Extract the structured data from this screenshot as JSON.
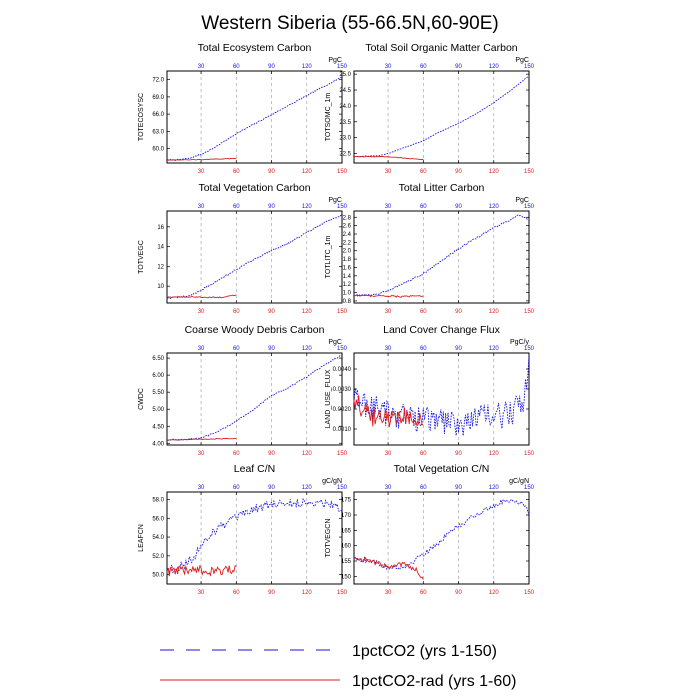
{
  "figure": {
    "title": "Western Siberia (55-66.5N,60-90E)",
    "colors": {
      "series_150": "#1515e0",
      "series_60": "#dc1c1c",
      "grid": "#9a9a9a",
      "axis": "#000000"
    },
    "legend": [
      {
        "label": "1pctCO2 (yrs 1-150)",
        "style": "dashed",
        "color": "#1515e0"
      },
      {
        "label": "1pctCO2-rad (yrs 1-60)",
        "style": "solid",
        "color": "#dc1c1c"
      }
    ]
  },
  "chart_data": [
    {
      "type": "line",
      "title": "Total Ecosystem Carbon",
      "ylabel": "TOTECOSYSC",
      "units": "PgC",
      "xlim": [
        1,
        150
      ],
      "ylim": [
        57.5,
        73.5
      ],
      "xticks": [
        30,
        60,
        90,
        120,
        150
      ],
      "yticks": [
        60.0,
        63.0,
        66.0,
        69.0,
        72.0
      ],
      "ytick_labels": [
        "60.0",
        "63.0",
        "66.0",
        "69.0",
        "72.0"
      ],
      "series": [
        {
          "name": "1pctCO2 (yrs 1-150)",
          "noise": 0.1,
          "points": [
            [
              1,
              58.0
            ],
            [
              10,
              58.05
            ],
            [
              20,
              58.3
            ],
            [
              30,
              59.0
            ],
            [
              40,
              60.0
            ],
            [
              50,
              61.3
            ],
            [
              60,
              62.6
            ],
            [
              70,
              63.7
            ],
            [
              80,
              64.8
            ],
            [
              90,
              65.9
            ],
            [
              100,
              67.0
            ],
            [
              110,
              68.1
            ],
            [
              120,
              69.2
            ],
            [
              130,
              70.3
            ],
            [
              140,
              71.4
            ],
            [
              150,
              72.5
            ]
          ]
        },
        {
          "name": "1pctCO2-rad (yrs 1-60)",
          "noise": 0.05,
          "points": [
            [
              1,
              58.0
            ],
            [
              20,
              58.05
            ],
            [
              40,
              58.15
            ],
            [
              60,
              58.3
            ]
          ]
        }
      ]
    },
    {
      "type": "line",
      "title": "Total Soil Organic Matter Carbon",
      "ylabel": "TOTSOMC_1m",
      "units": "PgC",
      "xlim": [
        1,
        150
      ],
      "ylim": [
        22.2,
        25.1
      ],
      "xticks": [
        30,
        60,
        90,
        120,
        150
      ],
      "yticks": [
        22.5,
        23.0,
        23.5,
        24.0,
        24.5,
        25.0
      ],
      "ytick_labels": [
        "22.5",
        "23.0",
        "23.5",
        "24.0",
        "24.5",
        "25.0"
      ],
      "series": [
        {
          "name": "1pctCO2 (yrs 1-150)",
          "noise": 0.01,
          "points": [
            [
              1,
              22.4
            ],
            [
              20,
              22.42
            ],
            [
              30,
              22.5
            ],
            [
              45,
              22.7
            ],
            [
              60,
              22.9
            ],
            [
              75,
              23.2
            ],
            [
              90,
              23.45
            ],
            [
              105,
              23.75
            ],
            [
              120,
              24.1
            ],
            [
              135,
              24.5
            ],
            [
              150,
              24.95
            ]
          ]
        },
        {
          "name": "1pctCO2-rad (yrs 1-60)",
          "noise": 0.01,
          "points": [
            [
              1,
              22.4
            ],
            [
              30,
              22.4
            ],
            [
              45,
              22.35
            ],
            [
              60,
              22.3
            ]
          ]
        }
      ]
    },
    {
      "type": "line",
      "title": "Total Vegetation Carbon",
      "ylabel": "TOTVEGC",
      "units": "PgC",
      "xlim": [
        1,
        150
      ],
      "ylim": [
        8.3,
        17.6
      ],
      "xticks": [
        30,
        60,
        90,
        120,
        150
      ],
      "yticks": [
        10,
        12,
        14,
        16
      ],
      "ytick_labels": [
        "10",
        "12",
        "14",
        "16"
      ],
      "series": [
        {
          "name": "1pctCO2 (yrs 1-150)",
          "noise": 0.08,
          "points": [
            [
              1,
              8.8
            ],
            [
              20,
              9.0
            ],
            [
              30,
              9.6
            ],
            [
              45,
              10.6
            ],
            [
              60,
              11.7
            ],
            [
              75,
              12.7
            ],
            [
              90,
              13.6
            ],
            [
              105,
              14.4
            ],
            [
              120,
              15.4
            ],
            [
              135,
              16.4
            ],
            [
              150,
              17.2
            ]
          ]
        },
        {
          "name": "1pctCO2-rad (yrs 1-60)",
          "noise": 0.05,
          "points": [
            [
              1,
              8.9
            ],
            [
              30,
              8.9
            ],
            [
              45,
              8.85
            ],
            [
              60,
              9.1
            ]
          ]
        }
      ]
    },
    {
      "type": "line",
      "title": "Total Litter Carbon",
      "ylabel": "TOTLITC_1m",
      "units": "PgC",
      "xlim": [
        1,
        150
      ],
      "ylim": [
        0.75,
        2.95
      ],
      "xticks": [
        30,
        60,
        90,
        120,
        150
      ],
      "yticks": [
        0.8,
        1.0,
        1.2,
        1.4,
        1.6,
        1.8,
        2.0,
        2.2,
        2.4,
        2.6,
        2.8
      ],
      "ytick_labels": [
        "0.8",
        "1.0",
        "1.2",
        "1.4",
        "1.6",
        "1.8",
        "2.0",
        "2.2",
        "2.4",
        "2.6",
        "2.8"
      ],
      "series": [
        {
          "name": "1pctCO2 (yrs 1-150)",
          "noise": 0.02,
          "points": [
            [
              1,
              0.93
            ],
            [
              20,
              0.95
            ],
            [
              30,
              1.05
            ],
            [
              45,
              1.25
            ],
            [
              60,
              1.45
            ],
            [
              75,
              1.75
            ],
            [
              90,
              2.05
            ],
            [
              105,
              2.3
            ],
            [
              120,
              2.55
            ],
            [
              135,
              2.75
            ],
            [
              140,
              2.85
            ],
            [
              150,
              2.75
            ]
          ]
        },
        {
          "name": "1pctCO2-rad (yrs 1-60)",
          "noise": 0.02,
          "points": [
            [
              1,
              0.93
            ],
            [
              30,
              0.92
            ],
            [
              45,
              0.9
            ],
            [
              60,
              0.93
            ]
          ]
        }
      ]
    },
    {
      "type": "line",
      "title": "Coarse Woody Debris Carbon",
      "ylabel": "CWDC",
      "units": "PgC",
      "xlim": [
        1,
        150
      ],
      "ylim": [
        3.95,
        6.65
      ],
      "xticks": [
        30,
        60,
        90,
        120,
        150
      ],
      "yticks": [
        4.0,
        4.5,
        5.0,
        5.5,
        6.0,
        6.5
      ],
      "ytick_labels": [
        "4.00",
        "4.50",
        "5.00",
        "5.50",
        "6.00",
        "6.50"
      ],
      "series": [
        {
          "name": "1pctCO2 (yrs 1-150)",
          "noise": 0.02,
          "points": [
            [
              1,
              4.1
            ],
            [
              20,
              4.12
            ],
            [
              30,
              4.15
            ],
            [
              45,
              4.35
            ],
            [
              60,
              4.65
            ],
            [
              75,
              5.0
            ],
            [
              90,
              5.4
            ],
            [
              100,
              5.55
            ],
            [
              110,
              5.75
            ],
            [
              120,
              5.95
            ],
            [
              135,
              6.3
            ],
            [
              150,
              6.6
            ]
          ]
        },
        {
          "name": "1pctCO2-rad (yrs 1-60)",
          "noise": 0.01,
          "points": [
            [
              1,
              4.1
            ],
            [
              30,
              4.12
            ],
            [
              60,
              4.14
            ]
          ]
        }
      ]
    },
    {
      "type": "line",
      "title": "Land Cover Change Flux",
      "ylabel": "LAND_USE_FLUX",
      "units": "PgC/y",
      "xlim": [
        1,
        150
      ],
      "ylim": [
        0.0002,
        0.0048
      ],
      "xticks": [
        30,
        60,
        90,
        120,
        150
      ],
      "yticks": [
        0.001,
        0.002,
        0.003,
        0.004
      ],
      "ytick_labels": [
        "0.0010",
        "0.0020",
        "0.0030",
        "0.0040"
      ],
      "series": [
        {
          "name": "1pctCO2 (yrs 1-150)",
          "noise": 0.0007,
          "points": [
            [
              1,
              0.0025
            ],
            [
              30,
              0.0018
            ],
            [
              60,
              0.0015
            ],
            [
              90,
              0.0013
            ],
            [
              110,
              0.0016
            ],
            [
              130,
              0.0017
            ],
            [
              145,
              0.0022
            ],
            [
              150,
              0.0047
            ]
          ]
        },
        {
          "name": "1pctCO2-rad (yrs 1-60)",
          "noise": 0.0005,
          "points": [
            [
              1,
              0.0025
            ],
            [
              15,
              0.0016
            ],
            [
              30,
              0.0015
            ],
            [
              45,
              0.0017
            ],
            [
              60,
              0.0014
            ]
          ]
        }
      ]
    },
    {
      "type": "line",
      "title": "Leaf C/N",
      "ylabel": "LEAFCN",
      "units": "gC/gN",
      "xlim": [
        1,
        150
      ],
      "ylim": [
        49.0,
        58.8
      ],
      "xticks": [
        30,
        60,
        90,
        120,
        150
      ],
      "yticks": [
        50.0,
        52.0,
        54.0,
        56.0,
        58.0
      ],
      "ytick_labels": [
        "50.0",
        "52.0",
        "54.0",
        "56.0",
        "58.0"
      ],
      "series": [
        {
          "name": "1pctCO2 (yrs 1-150)",
          "noise": 0.45,
          "points": [
            [
              1,
              50.5
            ],
            [
              15,
              51.0
            ],
            [
              25,
              52.0
            ],
            [
              35,
              54.0
            ],
            [
              45,
              55.0
            ],
            [
              60,
              56.0
            ],
            [
              75,
              57.0
            ],
            [
              90,
              57.5
            ],
            [
              110,
              57.6
            ],
            [
              130,
              57.7
            ],
            [
              145,
              57.5
            ],
            [
              150,
              56.5
            ]
          ]
        },
        {
          "name": "1pctCO2-rad (yrs 1-60)",
          "noise": 0.5,
          "points": [
            [
              1,
              50.3
            ],
            [
              20,
              50.5
            ],
            [
              40,
              50.4
            ],
            [
              60,
              50.5
            ]
          ]
        }
      ]
    },
    {
      "type": "line",
      "title": "Total Vegetation C/N",
      "ylabel": "TOTVEGCN",
      "units": "gC/gN",
      "xlim": [
        1,
        150
      ],
      "ylim": [
        147.5,
        177.5
      ],
      "xticks": [
        30,
        60,
        90,
        120,
        150
      ],
      "yticks": [
        150,
        155,
        160,
        165,
        170,
        175
      ],
      "ytick_labels": [
        "150",
        "155",
        "160",
        "165",
        "170",
        "175"
      ],
      "series": [
        {
          "name": "1pctCO2 (yrs 1-150)",
          "noise": 0.8,
          "points": [
            [
              1,
              156
            ],
            [
              15,
              155
            ],
            [
              30,
              153
            ],
            [
              45,
              153
            ],
            [
              55,
              156
            ],
            [
              70,
              160
            ],
            [
              85,
              165
            ],
            [
              100,
              169
            ],
            [
              115,
              172
            ],
            [
              130,
              175
            ],
            [
              145,
              174
            ],
            [
              150,
              171
            ]
          ]
        },
        {
          "name": "1pctCO2-rad (yrs 1-60)",
          "noise": 0.8,
          "points": [
            [
              1,
              156
            ],
            [
              15,
              155
            ],
            [
              30,
              153
            ],
            [
              45,
              154
            ],
            [
              55,
              152
            ],
            [
              60,
              149
            ]
          ]
        }
      ]
    }
  ]
}
